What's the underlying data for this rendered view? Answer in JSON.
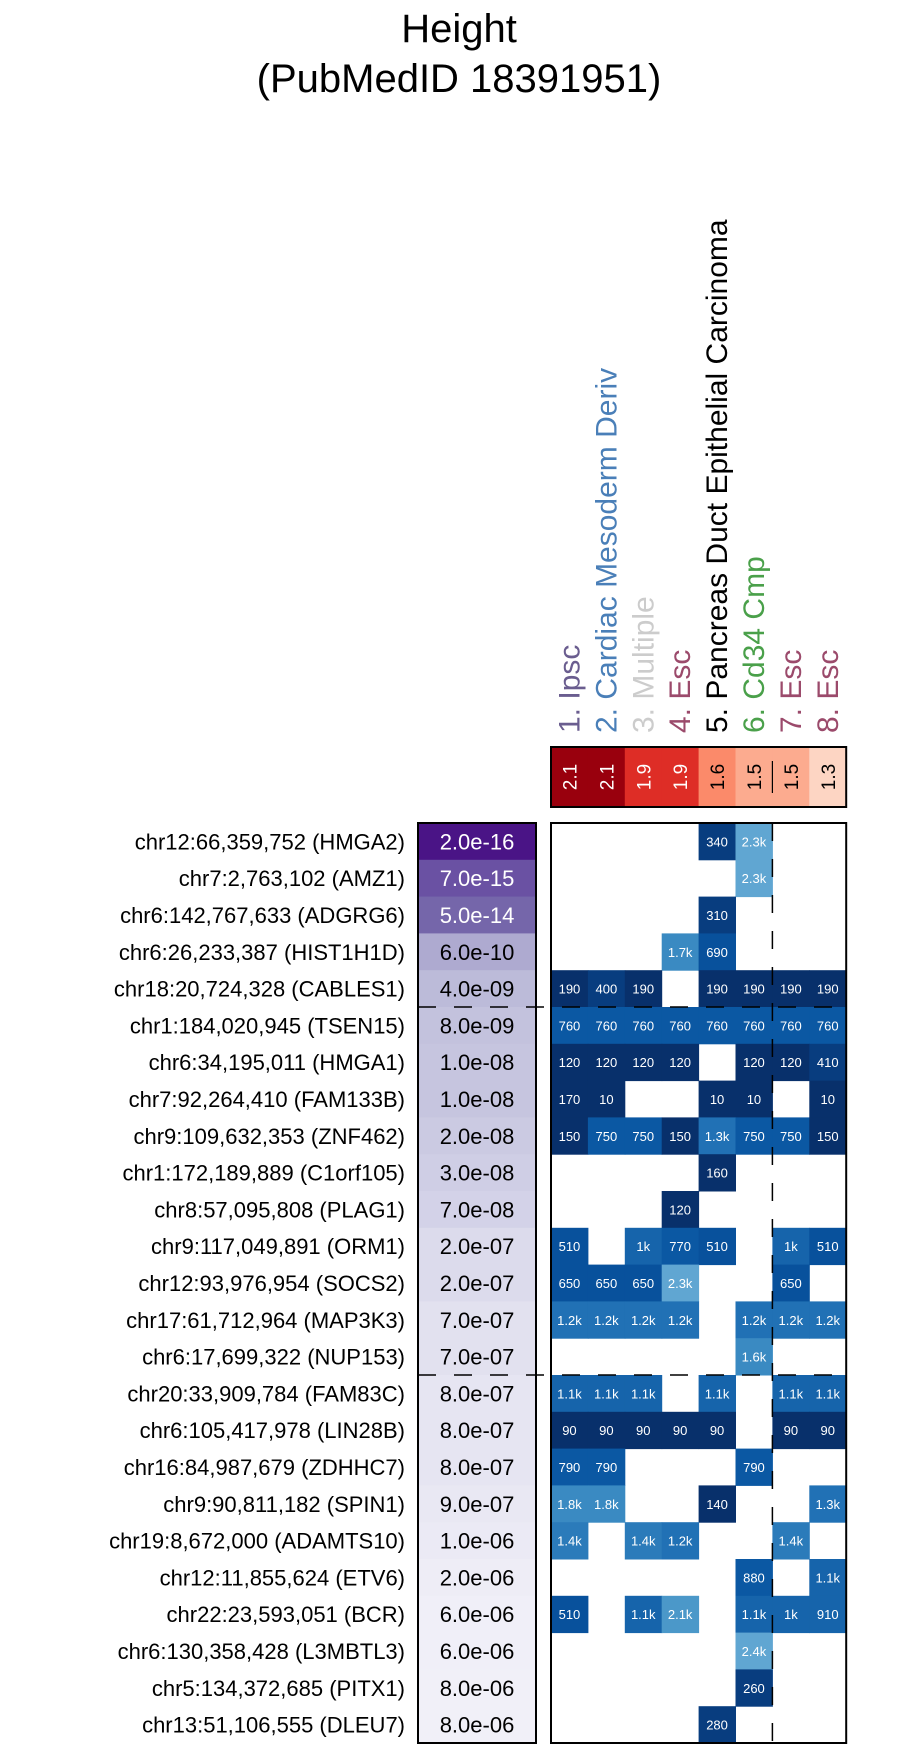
{
  "chart_data": {
    "type": "heatmap",
    "title_lines": [
      "Height",
      "(PubMedID 18391951)"
    ],
    "columns": [
      {
        "label": "1. Ipsc",
        "color": "#6a5d8f",
        "enrichment": "2.1",
        "enrichment_value": 2.1
      },
      {
        "label": "2. Cardiac Mesoderm Deriv",
        "color": "#4a7fb8",
        "enrichment": "2.1",
        "enrichment_value": 2.1
      },
      {
        "label": "3. Multiple",
        "color": "#cccccc",
        "enrichment": "1.9",
        "enrichment_value": 1.9
      },
      {
        "label": "4. Esc",
        "color": "#9b4a6b",
        "enrichment": "1.9",
        "enrichment_value": 1.9
      },
      {
        "label": "5. Pancreas Duct Epithelial Carcinoma",
        "color": "#000000",
        "enrichment": "1.6",
        "enrichment_value": 1.6
      },
      {
        "label": "6. Cd34 Cmp",
        "color": "#4aa04a",
        "enrichment": "1.5",
        "enrichment_value": 1.5
      },
      {
        "label": "7. Esc",
        "color": "#9b4a6b",
        "enrichment": "1.5",
        "enrichment_value": 1.5
      },
      {
        "label": "8. Esc",
        "color": "#9b4a6b",
        "enrichment": "1.3",
        "enrichment_value": 1.3
      }
    ],
    "rows": [
      {
        "label": "chr12:66,359,752 (HMGA2)",
        "pvalue": "2.0e-16",
        "cells": [
          "",
          "",
          "",
          "",
          "340",
          "2.3k",
          "",
          ""
        ]
      },
      {
        "label": "chr7:2,763,102 (AMZ1)",
        "pvalue": "7.0e-15",
        "cells": [
          "",
          "",
          "",
          "",
          "",
          "2.3k",
          "",
          ""
        ]
      },
      {
        "label": "chr6:142,767,633 (ADGRG6)",
        "pvalue": "5.0e-14",
        "cells": [
          "",
          "",
          "",
          "",
          "310",
          "",
          "",
          ""
        ]
      },
      {
        "label": "chr6:26,233,387 (HIST1H1D)",
        "pvalue": "6.0e-10",
        "cells": [
          "",
          "",
          "",
          "1.7k",
          "690",
          "",
          "",
          ""
        ]
      },
      {
        "label": "chr18:20,724,328 (CABLES1)",
        "pvalue": "4.0e-09",
        "cells": [
          "190",
          "400",
          "190",
          "",
          "190",
          "190",
          "190",
          "190"
        ]
      },
      {
        "label": "chr1:184,020,945 (TSEN15)",
        "pvalue": "8.0e-09",
        "cells": [
          "760",
          "760",
          "760",
          "760",
          "760",
          "760",
          "760",
          "760"
        ]
      },
      {
        "label": "chr6:34,195,011 (HMGA1)",
        "pvalue": "1.0e-08",
        "cells": [
          "120",
          "120",
          "120",
          "120",
          "",
          "120",
          "120",
          "410"
        ]
      },
      {
        "label": "chr7:92,264,410 (FAM133B)",
        "pvalue": "1.0e-08",
        "cells": [
          "170",
          "10",
          "",
          "",
          "10",
          "10",
          "",
          "10"
        ]
      },
      {
        "label": "chr9:109,632,353 (ZNF462)",
        "pvalue": "2.0e-08",
        "cells": [
          "150",
          "750",
          "750",
          "150",
          "1.3k",
          "750",
          "750",
          "150"
        ]
      },
      {
        "label": "chr1:172,189,889 (C1orf105)",
        "pvalue": "3.0e-08",
        "cells": [
          "",
          "",
          "",
          "",
          "160",
          "",
          "",
          ""
        ]
      },
      {
        "label": "chr8:57,095,808 (PLAG1)",
        "pvalue": "7.0e-08",
        "cells": [
          "",
          "",
          "",
          "120",
          "",
          "",
          "",
          ""
        ]
      },
      {
        "label": "chr9:117,049,891 (ORM1)",
        "pvalue": "2.0e-07",
        "cells": [
          "510",
          "",
          "1k",
          "770",
          "510",
          "",
          "1k",
          "510"
        ]
      },
      {
        "label": "chr12:93,976,954 (SOCS2)",
        "pvalue": "2.0e-07",
        "cells": [
          "650",
          "650",
          "650",
          "2.3k",
          "",
          "",
          "650",
          ""
        ]
      },
      {
        "label": "chr17:61,712,964 (MAP3K3)",
        "pvalue": "7.0e-07",
        "cells": [
          "1.2k",
          "1.2k",
          "1.2k",
          "1.2k",
          "",
          "1.2k",
          "1.2k",
          "1.2k"
        ]
      },
      {
        "label": "chr6:17,699,322 (NUP153)",
        "pvalue": "7.0e-07",
        "cells": [
          "",
          "",
          "",
          "",
          "",
          "1.6k",
          "",
          ""
        ]
      },
      {
        "label": "chr20:33,909,784 (FAM83C)",
        "pvalue": "8.0e-07",
        "cells": [
          "1.1k",
          "1.1k",
          "1.1k",
          "",
          "1.1k",
          "",
          "1.1k",
          "1.1k"
        ]
      },
      {
        "label": "chr6:105,417,978 (LIN28B)",
        "pvalue": "8.0e-07",
        "cells": [
          "90",
          "90",
          "90",
          "90",
          "90",
          "",
          "90",
          "90"
        ]
      },
      {
        "label": "chr16:84,987,679 (ZDHHC7)",
        "pvalue": "8.0e-07",
        "cells": [
          "790",
          "790",
          "",
          "",
          "",
          "790",
          "",
          ""
        ]
      },
      {
        "label": "chr9:90,811,182 (SPIN1)",
        "pvalue": "9.0e-07",
        "cells": [
          "1.8k",
          "1.8k",
          "",
          "",
          "140",
          "",
          "",
          "1.3k"
        ]
      },
      {
        "label": "chr19:8,672,000 (ADAMTS10)",
        "pvalue": "1.0e-06",
        "cells": [
          "1.4k",
          "",
          "1.4k",
          "1.2k",
          "",
          "",
          "1.4k",
          ""
        ]
      },
      {
        "label": "chr12:11,855,624 (ETV6)",
        "pvalue": "2.0e-06",
        "cells": [
          "",
          "",
          "",
          "",
          "",
          "880",
          "",
          "1.1k"
        ]
      },
      {
        "label": "chr22:23,593,051 (BCR)",
        "pvalue": "6.0e-06",
        "cells": [
          "510",
          "",
          "1.1k",
          "2.1k",
          "",
          "1.1k",
          "1k",
          "910"
        ]
      },
      {
        "label": "chr6:130,358,428 (L3MBTL3)",
        "pvalue": "6.0e-06",
        "cells": [
          "",
          "",
          "",
          "",
          "",
          "2.4k",
          "",
          ""
        ]
      },
      {
        "label": "chr5:134,372,685 (PITX1)",
        "pvalue": "8.0e-06",
        "cells": [
          "",
          "",
          "",
          "",
          "",
          "260",
          "",
          ""
        ]
      },
      {
        "label": "chr13:51,106,555 (DLEU7)",
        "pvalue": "8.0e-06",
        "cells": [
          "",
          "",
          "",
          "",
          "280",
          "",
          "",
          ""
        ]
      }
    ],
    "pvalue_colors": [
      "#4a1486",
      "#6a51a3",
      "#7566aa",
      "#aeaad0",
      "#bcbbd9",
      "#c3c2dd",
      "#c6c5df",
      "#c6c5df",
      "#cbcae2",
      "#cfcee5",
      "#d3d2e8",
      "#dcdbec",
      "#dcdbec",
      "#e2e1ef",
      "#e2e1ef",
      "#e6e5f2",
      "#e6e5f2",
      "#e6e5f2",
      "#e9e8f3",
      "#ebeaf5",
      "#eeedf6",
      "#f0eff8",
      "#f0eff8",
      "#f1f0f8",
      "#f1f0f8"
    ],
    "enrichment_colors": [
      "#99000d",
      "#99000d",
      "#de2d26",
      "#de2d26",
      "#fb8a6a",
      "#fcab8f",
      "#fcab8f",
      "#fdd5c3"
    ],
    "row_separators_after": [
      4,
      14
    ],
    "column_separator_after": 5
  }
}
